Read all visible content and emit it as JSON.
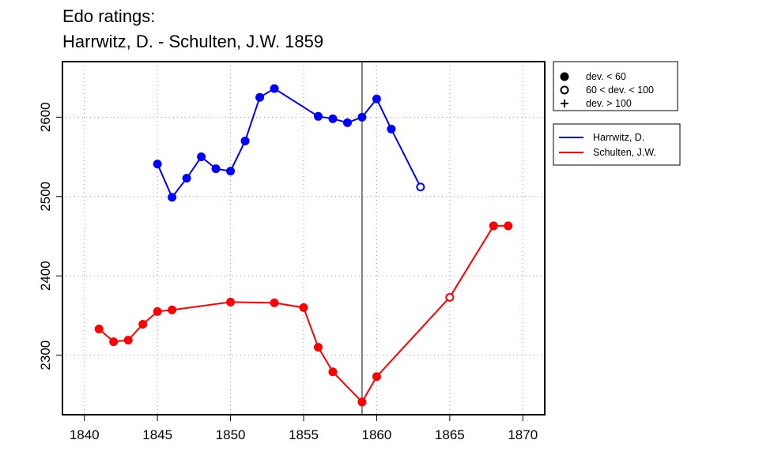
{
  "chart_data": {
    "type": "line",
    "title_lines": [
      "Edo ratings:",
      "Harrwitz, D. - Schulten, J.W. 1859"
    ],
    "xlabel": "",
    "ylabel": "",
    "xlim": [
      1838.5,
      1871.5
    ],
    "ylim": [
      2225,
      2670
    ],
    "x_ticks": [
      1840,
      1845,
      1850,
      1855,
      1860,
      1865,
      1870
    ],
    "y_ticks": [
      2300,
      2400,
      2500,
      2600
    ],
    "grid": "dotted",
    "reference_line_x": 1859,
    "series": [
      {
        "name": "Harrwitz, D.",
        "color": "#0000ff",
        "points": [
          {
            "x": 1845,
            "y": 2541,
            "dev": "lt60"
          },
          {
            "x": 1846,
            "y": 2499,
            "dev": "lt60"
          },
          {
            "x": 1847,
            "y": 2523,
            "dev": "lt60"
          },
          {
            "x": 1848,
            "y": 2550,
            "dev": "lt60"
          },
          {
            "x": 1849,
            "y": 2535,
            "dev": "lt60"
          },
          {
            "x": 1850,
            "y": 2532,
            "dev": "lt60"
          },
          {
            "x": 1851,
            "y": 2570,
            "dev": "lt60"
          },
          {
            "x": 1852,
            "y": 2625,
            "dev": "lt60"
          },
          {
            "x": 1853,
            "y": 2636,
            "dev": "lt60"
          },
          {
            "x": 1856,
            "y": 2601,
            "dev": "lt60"
          },
          {
            "x": 1857,
            "y": 2598,
            "dev": "lt60"
          },
          {
            "x": 1858,
            "y": 2593,
            "dev": "lt60"
          },
          {
            "x": 1859,
            "y": 2600,
            "dev": "lt60"
          },
          {
            "x": 1860,
            "y": 2623,
            "dev": "lt60"
          },
          {
            "x": 1861,
            "y": 2585,
            "dev": "lt60"
          },
          {
            "x": 1863,
            "y": 2512,
            "dev": "60to100"
          }
        ]
      },
      {
        "name": "Schulten, J.W.",
        "color": "#ff0000",
        "points": [
          {
            "x": 1841,
            "y": 2333,
            "dev": "lt60"
          },
          {
            "x": 1842,
            "y": 2317,
            "dev": "lt60"
          },
          {
            "x": 1843,
            "y": 2319,
            "dev": "lt60"
          },
          {
            "x": 1844,
            "y": 2339,
            "dev": "lt60"
          },
          {
            "x": 1845,
            "y": 2355,
            "dev": "lt60"
          },
          {
            "x": 1846,
            "y": 2357,
            "dev": "lt60"
          },
          {
            "x": 1850,
            "y": 2367,
            "dev": "lt60"
          },
          {
            "x": 1853,
            "y": 2366,
            "dev": "lt60"
          },
          {
            "x": 1855,
            "y": 2360,
            "dev": "lt60"
          },
          {
            "x": 1856,
            "y": 2310,
            "dev": "lt60"
          },
          {
            "x": 1857,
            "y": 2279,
            "dev": "lt60"
          },
          {
            "x": 1859,
            "y": 2241,
            "dev": "lt60"
          },
          {
            "x": 1860,
            "y": 2273,
            "dev": "lt60"
          },
          {
            "x": 1865,
            "y": 2373,
            "dev": "60to100"
          },
          {
            "x": 1868,
            "y": 2463,
            "dev": "lt60"
          },
          {
            "x": 1869,
            "y": 2463,
            "dev": "lt60"
          }
        ]
      }
    ],
    "legend_markers": [
      {
        "label": "dev. < 60",
        "marker": "filled-circle"
      },
      {
        "label": "60 < dev. < 100",
        "marker": "open-circle"
      },
      {
        "label": "dev. > 100",
        "marker": "plus"
      }
    ],
    "legend_lines": [
      {
        "label": "Harrwitz, D.",
        "color": "#0000ff"
      },
      {
        "label": "Schulten, J.W.",
        "color": "#ff0000"
      }
    ]
  }
}
